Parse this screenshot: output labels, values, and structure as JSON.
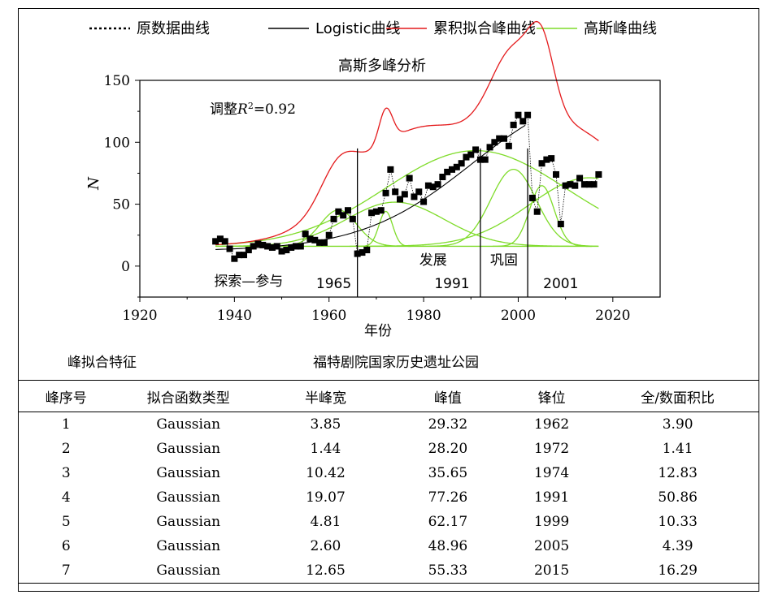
{
  "chart_data": {
    "type": "scatter",
    "title": "高斯多峰分析",
    "xlabel": "年份",
    "ylabel": "N",
    "xlim": [
      1920,
      2030
    ],
    "ylim": [
      -25,
      150
    ],
    "xticks": [
      1920,
      1940,
      1960,
      1980,
      2000,
      2020
    ],
    "yticks": [
      0,
      50,
      100,
      150
    ],
    "annotation": "调整R²=0.92",
    "annotation_parts": {
      "prefix": "调整",
      "var": "R",
      "sup": "2",
      "suffix": "=0.92"
    },
    "legend": {
      "placement": "top",
      "entries": [
        {
          "name": "原数据曲线",
          "style": "dotted",
          "color": "#000000"
        },
        {
          "name": "Logistic曲线",
          "style": "solid",
          "color": "#000000"
        },
        {
          "name": "累积拟合峰曲线",
          "style": "solid",
          "color": "#e41a1c"
        },
        {
          "name": "高斯峰曲线",
          "style": "solid",
          "color": "#7fdc2a"
        }
      ]
    },
    "stage_dividers": [
      1966,
      1992,
      2002
    ],
    "stage_labels": [
      {
        "text": "探索—参与",
        "x": 1943,
        "y": -12
      },
      {
        "text": "1965",
        "x": 1961,
        "y": -14
      },
      {
        "text": "发展",
        "x": 1982,
        "y": 5
      },
      {
        "text": "1991",
        "x": 1986,
        "y": -14
      },
      {
        "text": "巩固",
        "x": 1997,
        "y": 5
      },
      {
        "text": "2001",
        "x": 2009,
        "y": -14
      }
    ],
    "baseline": 16,
    "logistic": {
      "K": 140,
      "r": 0.085,
      "x0": 1990,
      "y0": 12
    },
    "series": [
      {
        "name": "原数据曲线",
        "x": [
          1936,
          1937,
          1938,
          1939,
          1940,
          1941,
          1942,
          1943,
          1944,
          1945,
          1946,
          1947,
          1948,
          1949,
          1950,
          1951,
          1952,
          1953,
          1954,
          1955,
          1956,
          1957,
          1958,
          1959,
          1960,
          1961,
          1962,
          1963,
          1964,
          1965,
          1966,
          1967,
          1968,
          1969,
          1970,
          1971,
          1972,
          1973,
          1974,
          1975,
          1976,
          1977,
          1978,
          1979,
          1980,
          1981,
          1982,
          1983,
          1984,
          1985,
          1986,
          1987,
          1988,
          1989,
          1990,
          1991,
          1992,
          1993,
          1994,
          1995,
          1996,
          1997,
          1998,
          1999,
          2000,
          2001,
          2002,
          2003,
          2004,
          2005,
          2006,
          2007,
          2008,
          2009,
          2010,
          2011,
          2012,
          2013,
          2014,
          2015,
          2016,
          2017
        ],
        "y": [
          20,
          22,
          20,
          14,
          6,
          9,
          9,
          13,
          16,
          18,
          17,
          16,
          15,
          16,
          12,
          13,
          15,
          16,
          16,
          26,
          22,
          21,
          19,
          19,
          25,
          38,
          44,
          41,
          45,
          38,
          10,
          11,
          13,
          43,
          44,
          45,
          59,
          78,
          60,
          54,
          58,
          71,
          56,
          60,
          52,
          65,
          64,
          66,
          72,
          76,
          78,
          80,
          83,
          88,
          90,
          94,
          86,
          86,
          96,
          100,
          103,
          103,
          97,
          114,
          122,
          117,
          122,
          55,
          44,
          83,
          86,
          87,
          74,
          34,
          65,
          66,
          65,
          71,
          66,
          66,
          66,
          74
        ]
      }
    ],
    "gaussian_peaks": [
      {
        "xc": 1962,
        "w": 3.85,
        "A": 29.32
      },
      {
        "xc": 1972,
        "w": 1.44,
        "A": 28.2
      },
      {
        "xc": 1974,
        "w": 10.42,
        "A": 35.65
      },
      {
        "xc": 1991,
        "w": 19.07,
        "A": 77.26
      },
      {
        "xc": 1999,
        "w": 4.81,
        "A": 62.17
      },
      {
        "xc": 2005,
        "w": 2.6,
        "A": 48.96
      },
      {
        "xc": 2015,
        "w": 12.65,
        "A": 55.33
      }
    ]
  },
  "section": {
    "left_title": "峰拟合特征",
    "center_title": "福特剧院国家历史遗址公园"
  },
  "table": {
    "headers": [
      "峰序号",
      "拟合函数类型",
      "半峰宽",
      "峰值",
      "锋位",
      "全/数面积比"
    ],
    "rows": [
      [
        "1",
        "Gaussian",
        "3.85",
        "29.32",
        "1962",
        "3.90"
      ],
      [
        "2",
        "Gaussian",
        "1.44",
        "28.20",
        "1972",
        "1.41"
      ],
      [
        "3",
        "Gaussian",
        "10.42",
        "35.65",
        "1974",
        "12.83"
      ],
      [
        "4",
        "Gaussian",
        "19.07",
        "77.26",
        "1991",
        "50.86"
      ],
      [
        "5",
        "Gaussian",
        "4.81",
        "62.17",
        "1999",
        "10.33"
      ],
      [
        "6",
        "Gaussian",
        "2.60",
        "48.96",
        "2005",
        "4.39"
      ],
      [
        "7",
        "Gaussian",
        "12.65",
        "55.33",
        "2015",
        "16.29"
      ]
    ]
  }
}
